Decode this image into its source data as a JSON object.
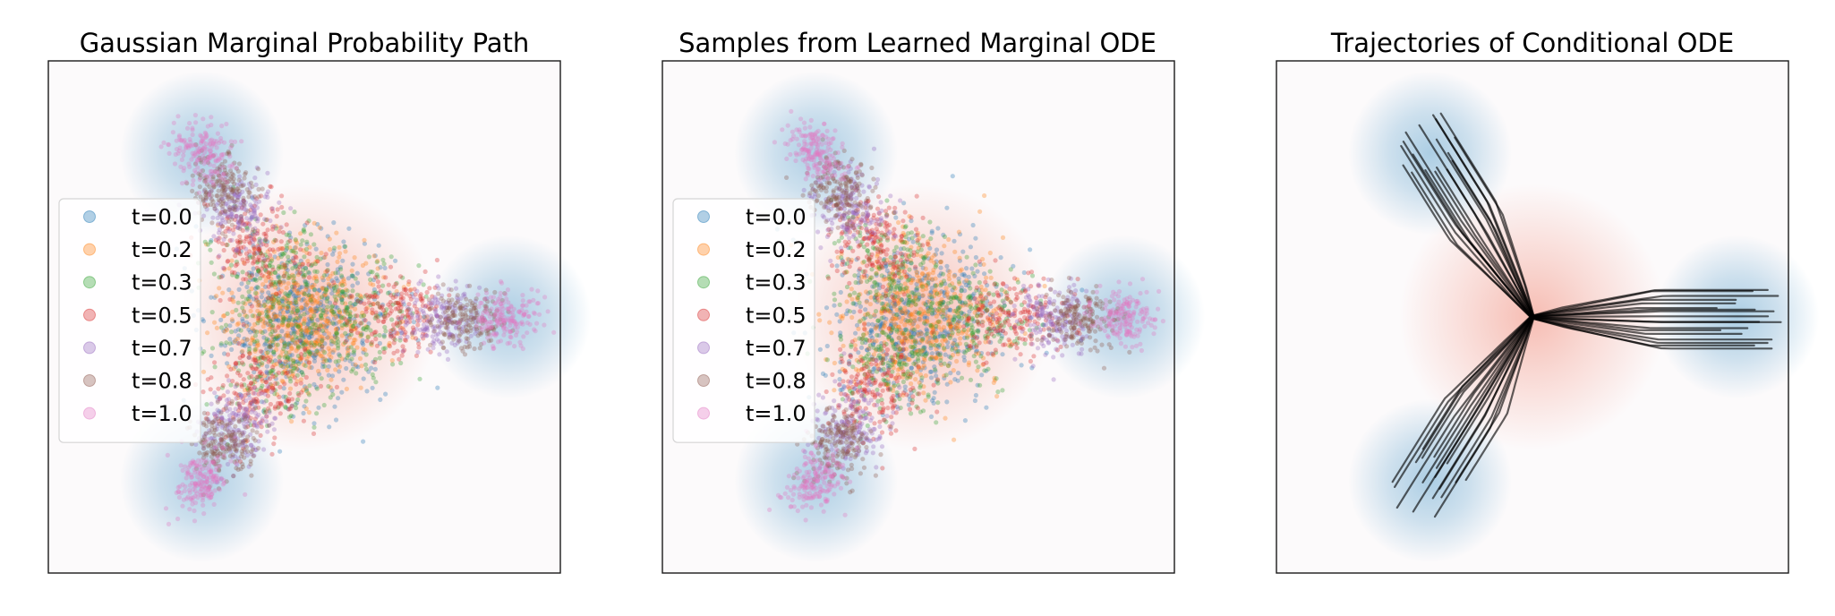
{
  "colors": {
    "source_glow": "#f4a597",
    "target_glow": "#9ec6e0",
    "background": "#fcfafb",
    "trajectory": "#000000"
  },
  "chart_data": [
    {
      "type": "scatter",
      "title": "Gaussian Marginal Probability Path",
      "xlabel": "",
      "ylabel": "",
      "xlim": [
        -2.5,
        2.5
      ],
      "ylim": [
        -2.5,
        2.5
      ],
      "grid": false,
      "legend_position": "center-left",
      "source_distribution": {
        "mean": [
          0,
          0
        ],
        "std": 0.5
      },
      "target_distribution": {
        "centers": [
          [
            2.0,
            0.0
          ],
          [
            -1.0,
            1.6
          ],
          [
            -1.0,
            -1.6
          ]
        ],
        "std": 0.25
      },
      "series": [
        {
          "name": "t=0.0",
          "t": 0.0,
          "color": "#1f77b4",
          "center_scale": 0.0,
          "spread": 0.42
        },
        {
          "name": "t=0.2",
          "t": 0.2,
          "color": "#ff7f0e",
          "center_scale": 0.12,
          "spread": 0.34
        },
        {
          "name": "t=0.3",
          "t": 0.3,
          "color": "#2ca02c",
          "center_scale": 0.26,
          "spread": 0.28
        },
        {
          "name": "t=0.5",
          "t": 0.5,
          "color": "#d62728",
          "center_scale": 0.44,
          "spread": 0.22
        },
        {
          "name": "t=0.7",
          "t": 0.7,
          "color": "#9467bd",
          "center_scale": 0.66,
          "spread": 0.17
        },
        {
          "name": "t=0.8",
          "t": 0.8,
          "color": "#8c564b",
          "center_scale": 0.78,
          "spread": 0.15
        },
        {
          "name": "t=1.0",
          "t": 1.0,
          "color": "#e377c2",
          "center_scale": 1.0,
          "spread": 0.13
        }
      ]
    },
    {
      "type": "scatter",
      "title": "Samples from Learned Marginal ODE",
      "xlabel": "",
      "ylabel": "",
      "xlim": [
        -2.5,
        2.5
      ],
      "ylim": [
        -2.5,
        2.5
      ],
      "grid": false,
      "legend_position": "center-left",
      "source_distribution": {
        "mean": [
          0,
          0
        ],
        "std": 0.5
      },
      "target_distribution": {
        "centers": [
          [
            2.0,
            0.0
          ],
          [
            -1.0,
            1.6
          ],
          [
            -1.0,
            -1.6
          ]
        ],
        "std": 0.25
      },
      "series": [
        {
          "name": "t=0.0",
          "t": 0.0,
          "color": "#1f77b4",
          "center_scale": 0.0,
          "spread": 0.42
        },
        {
          "name": "t=0.2",
          "t": 0.2,
          "color": "#ff7f0e",
          "center_scale": 0.12,
          "spread": 0.34
        },
        {
          "name": "t=0.3",
          "t": 0.3,
          "color": "#2ca02c",
          "center_scale": 0.26,
          "spread": 0.28
        },
        {
          "name": "t=0.5",
          "t": 0.5,
          "color": "#d62728",
          "center_scale": 0.44,
          "spread": 0.22
        },
        {
          "name": "t=0.7",
          "t": 0.7,
          "color": "#9467bd",
          "center_scale": 0.66,
          "spread": 0.17
        },
        {
          "name": "t=0.8",
          "t": 0.8,
          "color": "#8c564b",
          "center_scale": 0.78,
          "spread": 0.15
        },
        {
          "name": "t=1.0",
          "t": 1.0,
          "color": "#e377c2",
          "center_scale": 1.0,
          "spread": 0.13
        }
      ]
    },
    {
      "type": "line",
      "title": "Trajectories of Conditional ODE",
      "xlabel": "",
      "ylabel": "",
      "xlim": [
        -2.5,
        2.5
      ],
      "ylim": [
        -2.5,
        2.5
      ],
      "grid": false,
      "legend_position": "none",
      "source_distribution": {
        "mean": [
          0,
          0
        ],
        "std": 0.5
      },
      "target_distribution": {
        "centers": [
          [
            2.0,
            0.0
          ],
          [
            -1.0,
            1.6
          ],
          [
            -1.0,
            -1.6
          ]
        ],
        "std": 0.25
      },
      "meeting_point": [
        0.0,
        0.0
      ],
      "trajectory_count_per_arm": 18
    }
  ]
}
